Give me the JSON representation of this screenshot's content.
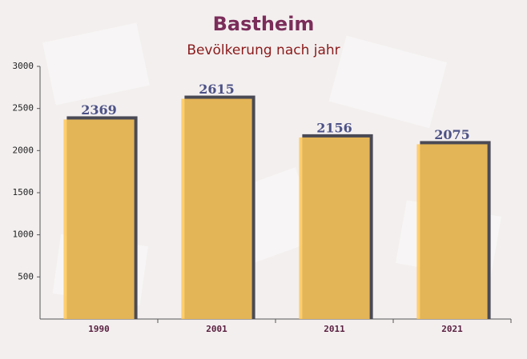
{
  "chart_data": {
    "type": "bar",
    "title": "Bastheim",
    "subtitle": "Bevölkerung nach jahr",
    "categories": [
      "1990",
      "2001",
      "2011",
      "2021"
    ],
    "values": [
      2369,
      2615,
      2156,
      2075
    ],
    "color": "#ffc857",
    "ylim": [
      0,
      3000
    ],
    "yticks": [
      500,
      1000,
      1500,
      2000,
      2500,
      3000
    ]
  }
}
